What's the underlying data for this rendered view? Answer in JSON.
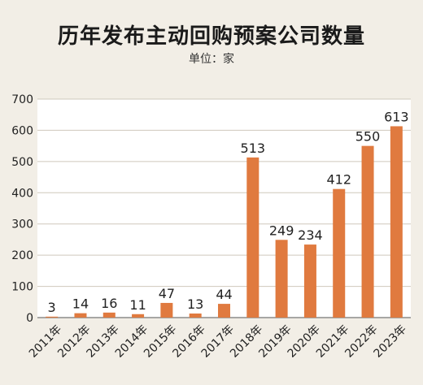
{
  "header": {
    "title": "历年发布主动回购预案公司数量",
    "subtitle": "单位：家"
  },
  "colors": {
    "bar": "#e07a3f",
    "background": "#f2eee6",
    "plot_background": "#ffffff",
    "grid": "#cfc8bc"
  },
  "chart_data": {
    "type": "bar",
    "title": "历年发布主动回购预案公司数量",
    "subtitle": "单位：家",
    "xlabel": "",
    "ylabel": "",
    "ylim": [
      0,
      700
    ],
    "yticks": [
      0,
      100,
      200,
      300,
      400,
      500,
      600,
      700
    ],
    "grid": true,
    "legend": "none",
    "categories": [
      "2011年",
      "2012年",
      "2013年",
      "2014年",
      "2015年",
      "2016年",
      "2017年",
      "2018年",
      "2019年",
      "2020年",
      "2021年",
      "2022年",
      "2023年"
    ],
    "values": [
      3,
      14,
      16,
      11,
      47,
      13,
      44,
      513,
      249,
      234,
      412,
      550,
      613
    ]
  }
}
